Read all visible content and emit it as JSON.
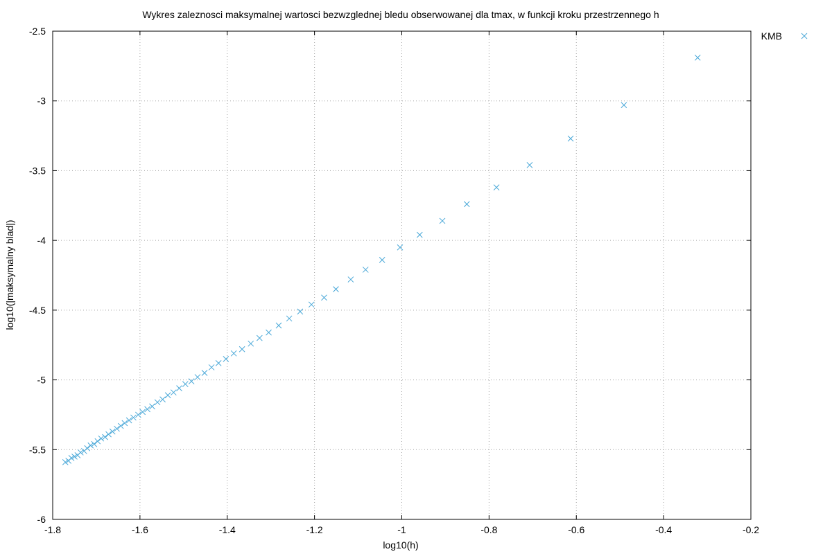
{
  "chart_data": {
    "type": "scatter",
    "title": "Wykres zaleznosci maksymalnej wartosci bezwzglednej bledu obserwowanej dla tmax, w funkcji kroku przestrzennego h",
    "xlabel": "log10(h)",
    "ylabel": "log10(|maksymalny blad|)",
    "xlim": [
      -1.8,
      -0.2
    ],
    "ylim": [
      -6,
      -2.5
    ],
    "x_ticks": [
      -1.8,
      -1.6,
      -1.4,
      -1.2,
      -1,
      -0.8,
      -0.6,
      -0.4,
      -0.2
    ],
    "x_tick_labels": [
      "-1.8",
      "-1.6",
      "-1.4",
      "-1.2",
      "-1",
      "-0.8",
      "-0.6",
      "-0.4",
      "-0.2"
    ],
    "y_ticks": [
      -2.5,
      -3,
      -3.5,
      -4,
      -4.5,
      -5,
      -5.5,
      -6
    ],
    "y_tick_labels": [
      "-2.5",
      "-3",
      "-3.5",
      "-4",
      "-4.5",
      "-5",
      "-5.5",
      "-6"
    ],
    "grid": true,
    "legend_position": "top-right",
    "series": [
      {
        "name": "KMB",
        "color": "#4aa8d8",
        "marker": "cross",
        "x": [
          -0.322,
          -0.491,
          -0.613,
          -0.707,
          -0.783,
          -0.851,
          -0.907,
          -0.959,
          -1.004,
          -1.045,
          -1.083,
          -1.117,
          -1.151,
          -1.178,
          -1.207,
          -1.233,
          -1.258,
          -1.282,
          -1.305,
          -1.326,
          -1.346,
          -1.366,
          -1.385,
          -1.403,
          -1.42,
          -1.436,
          -1.452,
          -1.468,
          -1.482,
          -1.496,
          -1.51,
          -1.523,
          -1.536,
          -1.548,
          -1.56,
          -1.572,
          -1.583,
          -1.594,
          -1.604,
          -1.615,
          -1.625,
          -1.635,
          -1.644,
          -1.653,
          -1.663,
          -1.672,
          -1.68,
          -1.689,
          -1.697,
          -1.705,
          -1.713,
          -1.721,
          -1.728,
          -1.736,
          -1.743,
          -1.75,
          -1.757,
          -1.764,
          -1.771
        ],
        "y": [
          -2.69,
          -3.03,
          -3.27,
          -3.46,
          -3.62,
          -3.74,
          -3.86,
          -3.96,
          -4.05,
          -4.14,
          -4.21,
          -4.28,
          -4.35,
          -4.41,
          -4.46,
          -4.51,
          -4.56,
          -4.61,
          -4.66,
          -4.7,
          -4.74,
          -4.78,
          -4.81,
          -4.85,
          -4.88,
          -4.91,
          -4.95,
          -4.98,
          -5.01,
          -5.03,
          -5.06,
          -5.09,
          -5.11,
          -5.14,
          -5.16,
          -5.19,
          -5.21,
          -5.23,
          -5.25,
          -5.27,
          -5.29,
          -5.31,
          -5.33,
          -5.35,
          -5.37,
          -5.39,
          -5.41,
          -5.42,
          -5.44,
          -5.46,
          -5.47,
          -5.49,
          -5.51,
          -5.52,
          -5.54,
          -5.55,
          -5.56,
          -5.58,
          -5.59
        ]
      }
    ]
  }
}
